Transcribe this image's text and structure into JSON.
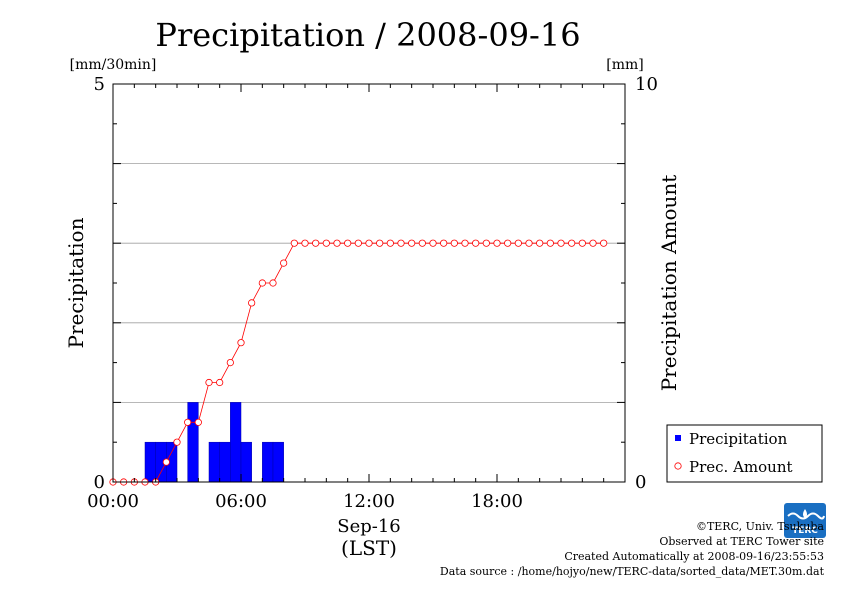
{
  "chart_data": {
    "type": "bar+line",
    "title": "Precipitation / 2008-09-16",
    "left_axis": {
      "label": "Precipitation",
      "unit": "[mm/30min]",
      "range": [
        0,
        5
      ],
      "ticks": [
        {
          "value": 0,
          "label": "0"
        },
        {
          "value": 5,
          "label": "5"
        }
      ]
    },
    "right_axis": {
      "label": "Precipitation Amount",
      "unit": "[mm]",
      "range": [
        0,
        10
      ],
      "ticks": [
        {
          "value": 0,
          "label": "0"
        },
        {
          "value": 10,
          "label": "10"
        }
      ]
    },
    "gridlines_left": [
      1,
      2,
      3,
      4
    ],
    "x_axis": {
      "range_hours": [
        0,
        24
      ],
      "ticks": [
        {
          "hour": 0,
          "label": "00:00"
        },
        {
          "hour": 6,
          "label": "06:00"
        },
        {
          "hour": 12,
          "label": "12:00"
        },
        {
          "hour": 18,
          "label": "18:00"
        }
      ],
      "date_label": "Sep-16",
      "zone_label": "(LST)"
    },
    "series": [
      {
        "name": "Precipitation",
        "kind": "bar",
        "color": "#0000ff",
        "axis": "left",
        "step_hours": 0.5,
        "values": [
          0,
          0,
          0,
          0.5,
          0.5,
          0.5,
          0,
          1.0,
          0,
          0.5,
          0.5,
          1.0,
          0.5,
          0,
          0.5,
          0.5,
          0,
          0,
          0,
          0,
          0,
          0,
          0,
          0,
          0,
          0,
          0,
          0,
          0,
          0,
          0,
          0,
          0,
          0,
          0,
          0,
          0,
          0,
          0,
          0,
          0,
          0,
          0,
          0,
          0,
          0,
          0,
          0
        ]
      },
      {
        "name": "Prec. Amount",
        "kind": "line",
        "color": "#ff0000",
        "axis": "right",
        "start_hour": 0,
        "step_hours": 0.5,
        "values": [
          0,
          0,
          0,
          0,
          0,
          0.5,
          1.0,
          1.5,
          1.5,
          2.5,
          2.5,
          3.0,
          3.5,
          4.5,
          5.0,
          5.0,
          5.5,
          6.0,
          6.0,
          6.0,
          6.0,
          6.0,
          6.0,
          6.0,
          6.0,
          6.0,
          6.0,
          6.0,
          6.0,
          6.0,
          6.0,
          6.0,
          6.0,
          6.0,
          6.0,
          6.0,
          6.0,
          6.0,
          6.0,
          6.0,
          6.0,
          6.0,
          6.0,
          6.0,
          6.0,
          6.0,
          6.0
        ]
      }
    ],
    "legend": {
      "placement": "bottom-right",
      "items": [
        "Precipitation",
        "Prec. Amount"
      ]
    }
  },
  "footer": {
    "copyright": "©TERC, Univ. Tsukuba",
    "site": "Observed at TERC Tower site",
    "created": "Created Automatically at 2008-09-16/23:55:53",
    "source": "Data source : /home/hojyo/new/TERC-data/sorted_data/MET.30m.dat"
  },
  "logo": {
    "text": "TERC",
    "color": "#1a6fc2",
    "icon": "terc-logo-icon"
  }
}
